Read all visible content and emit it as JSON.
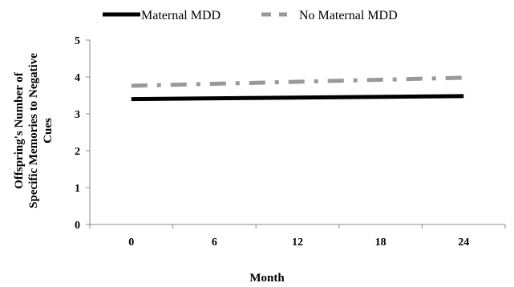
{
  "chart_data": {
    "type": "line",
    "xlabel": "Month",
    "ylabel_lines": [
      "Offspring's Number of",
      "Specific Memories to Negative",
      "Cues"
    ],
    "x_categories": [
      "0",
      "6",
      "12",
      "18",
      "24"
    ],
    "y_ticks": [
      "0",
      "1",
      "2",
      "3",
      "4",
      "5"
    ],
    "ylim": [
      0,
      5
    ],
    "grid": false,
    "legend_position": "top",
    "series": [
      {
        "name": "Maternal MDD",
        "color": "#000000",
        "dash": "solid",
        "x": [
          0,
          24
        ],
        "y": [
          3.4,
          3.48
        ]
      },
      {
        "name": "No Maternal MDD",
        "color": "#999999",
        "dash": "dashdot",
        "x": [
          0,
          24
        ],
        "y": [
          3.76,
          3.98
        ]
      }
    ]
  }
}
